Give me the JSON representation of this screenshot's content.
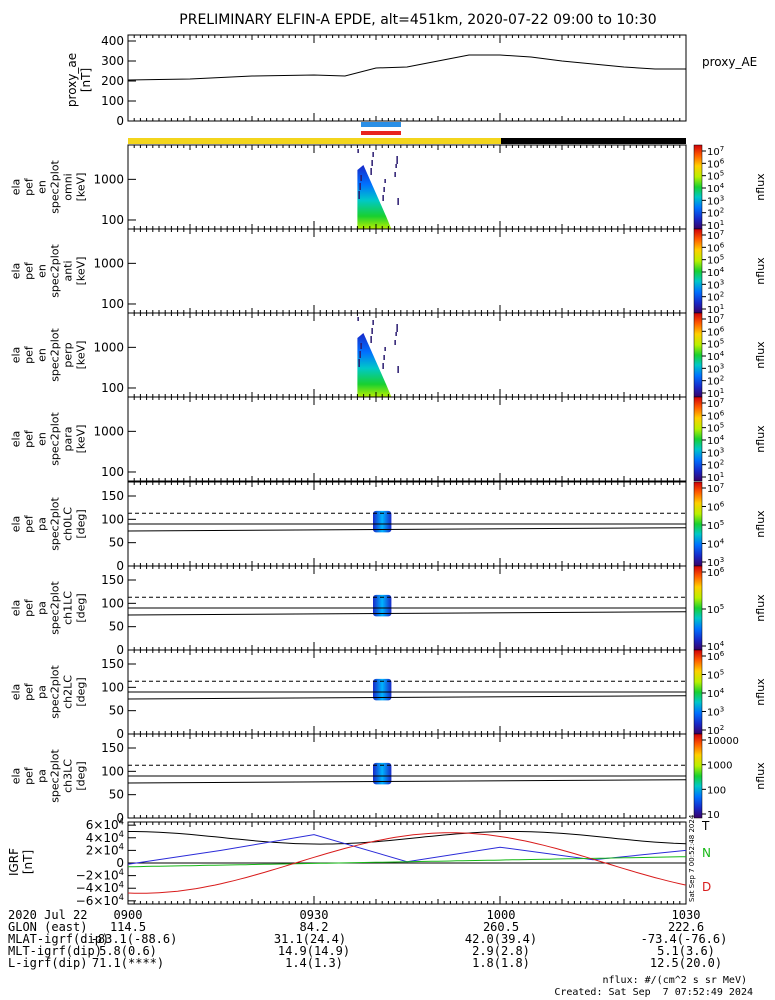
{
  "title": "PRELIMINARY ELFIN-A EPDE, alt=451km, 2020-07-22 09:00 to 10:30",
  "colors": {
    "ae_line": "#000000",
    "sci_bar": "#2a8fe6",
    "sci_bar2": "#e8231e",
    "day_bar": "#f3d51c",
    "night_bar": "#000000",
    "bx": "#2b2bd8",
    "by": "#16b816",
    "bz": "#d81b1b",
    "btot": "#000000"
  },
  "ae_panel": {
    "ylabel_lines": [
      "proxy_ae",
      "[nT]"
    ],
    "legend": "proxy_AE",
    "yticks": [
      "0",
      "100",
      "200",
      "300",
      "400"
    ]
  },
  "spec_panels": [
    {
      "ylabel_lines": [
        "ela",
        "pef",
        "en",
        "spec2plot",
        "omni",
        "[keV]"
      ],
      "yticks": [
        "100",
        "1000"
      ],
      "cb_label": "nflux",
      "cb_ticks": [
        "10^7",
        "10^6",
        "10^5",
        "10^4",
        "10^3",
        "10^2",
        "10^1"
      ]
    },
    {
      "ylabel_lines": [
        "ela",
        "pef",
        "en",
        "spec2plot",
        "anti",
        "[keV]"
      ],
      "yticks": [
        "100",
        "1000"
      ],
      "cb_label": "nflux",
      "cb_ticks": [
        "10^7",
        "10^6",
        "10^5",
        "10^4",
        "10^3",
        "10^2",
        "10^1"
      ]
    },
    {
      "ylabel_lines": [
        "ela",
        "pef",
        "en",
        "spec2plot",
        "perp",
        "[keV]"
      ],
      "yticks": [
        "100",
        "1000"
      ],
      "cb_label": "nflux",
      "cb_ticks": [
        "10^7",
        "10^6",
        "10^5",
        "10^4",
        "10^3",
        "10^2",
        "10^1"
      ]
    },
    {
      "ylabel_lines": [
        "ela",
        "pef",
        "en",
        "spec2plot",
        "para",
        "[keV]"
      ],
      "yticks": [
        "100",
        "1000"
      ],
      "cb_label": "nflux",
      "cb_ticks": [
        "10^7",
        "10^6",
        "10^5",
        "10^4",
        "10^3",
        "10^2",
        "10^1"
      ]
    }
  ],
  "pa_panels": [
    {
      "ylabel_lines": [
        "ela",
        "pef",
        "pa",
        "spec2plot",
        "ch0LC",
        "[deg]"
      ],
      "yticks": [
        "0",
        "50",
        "100",
        "150"
      ],
      "cb_label": "nflux",
      "cb_ticks": [
        "10^7",
        "10^6",
        "10^5",
        "10^4",
        "10^3"
      ]
    },
    {
      "ylabel_lines": [
        "ela",
        "pef",
        "pa",
        "spec2plot",
        "ch1LC",
        "[deg]"
      ],
      "yticks": [
        "0",
        "50",
        "100",
        "150"
      ],
      "cb_label": "nflux",
      "cb_ticks": [
        "10^6",
        "10^5",
        "10^4"
      ]
    },
    {
      "ylabel_lines": [
        "ela",
        "pef",
        "pa",
        "spec2plot",
        "ch2LC",
        "[deg]"
      ],
      "yticks": [
        "0",
        "50",
        "100",
        "150"
      ],
      "cb_label": "nflux",
      "cb_ticks": [
        "10^6",
        "10^5",
        "10^4",
        "10^3",
        "10^2"
      ]
    },
    {
      "ylabel_lines": [
        "ela",
        "pef",
        "pa",
        "spec2plot",
        "ch3LC",
        "[deg]"
      ],
      "yticks": [
        "0",
        "50",
        "100",
        "150"
      ],
      "cb_label": "nflux",
      "cb_ticks": [
        "10000",
        "1000",
        "100",
        "10"
      ]
    }
  ],
  "igrf_panel": {
    "ylabel_lines": [
      "IGRF",
      "[nT]"
    ],
    "yticks": [
      "6×10^4",
      "4×10^4",
      "2×10^4",
      "0",
      "−2×10^4",
      "−4×10^4",
      "−6×10^4"
    ],
    "legend": [
      "T",
      "N",
      "D"
    ],
    "side_stamp": "Sat Sep  7 00:52:48 2024"
  },
  "bottom_table": {
    "rows": [
      {
        "label": "2020 Jul 22",
        "values": [
          "0900",
          "0930",
          "1000",
          "1030"
        ]
      },
      {
        "label": "GLON (east)",
        "values": [
          "114.5",
          "84.2",
          "260.5",
          "222.6"
        ]
      },
      {
        "label": "MLAT-igrf(dip)",
        "values": [
          "-83.1(-88.6)",
          "31.1(24.4)",
          "42.0(39.4)",
          "-73.4(-76.6)"
        ]
      },
      {
        "label": "MLT-igrf(dip)",
        "values": [
          "5.8(0.6)",
          "14.9(14.9)",
          "2.9(2.8)",
          "5.1(3.6)"
        ]
      },
      {
        "label": "L-igrf(dip)",
        "values": [
          "71.1(****)",
          "1.4(1.3)",
          "1.8(1.8)",
          "12.5(20.0)"
        ]
      }
    ]
  },
  "footer": {
    "units": "nflux: #/(cm^2 s sr MeV)",
    "created": "Created: Sat Sep  7 07:52:49 2024"
  },
  "chart_data": [
    {
      "type": "line",
      "series": [
        {
          "name": "proxy_AE",
          "x": [
            "09:00",
            "09:10",
            "09:20",
            "09:30",
            "09:35",
            "09:40",
            "09:45",
            "09:50",
            "09:55",
            "10:00",
            "10:05",
            "10:10",
            "10:15",
            "10:20",
            "10:25",
            "10:30"
          ],
          "values": [
            205,
            210,
            225,
            230,
            225,
            265,
            270,
            300,
            330,
            330,
            320,
            300,
            285,
            270,
            260,
            260
          ]
        }
      ],
      "x_range": [
        "09:00",
        "10:30"
      ],
      "ylim": [
        0,
        430
      ]
    },
    {
      "type": "heatmap",
      "title": "omni",
      "ylim_keV": [
        60,
        7000
      ],
      "log_y": true,
      "time_window": [
        "09:37",
        "09:42"
      ],
      "log_color_range": [
        1,
        7
      ]
    },
    {
      "type": "heatmap",
      "title": "anti",
      "ylim_keV": [
        60,
        7000
      ],
      "log_y": true,
      "time_window": [],
      "log_color_range": [
        1,
        7
      ]
    },
    {
      "type": "heatmap",
      "title": "perp",
      "ylim_keV": [
        60,
        7000
      ],
      "log_y": true,
      "time_window": [
        "09:37",
        "09:42"
      ],
      "log_color_range": [
        1,
        7
      ]
    },
    {
      "type": "heatmap",
      "title": "para",
      "ylim_keV": [
        60,
        7000
      ],
      "log_y": true,
      "time_window": [],
      "log_color_range": [
        1,
        7
      ]
    },
    {
      "type": "line",
      "series": [
        {
          "name": "Bx",
          "x": [
            "09:00",
            "09:15",
            "09:30",
            "09:45",
            "10:00",
            "10:15",
            "10:30"
          ],
          "values": [
            -2000,
            20000,
            45000,
            2000,
            25000,
            5000,
            20000
          ]
        }
      ],
      "ylim": [
        -65000,
        65000
      ]
    }
  ]
}
